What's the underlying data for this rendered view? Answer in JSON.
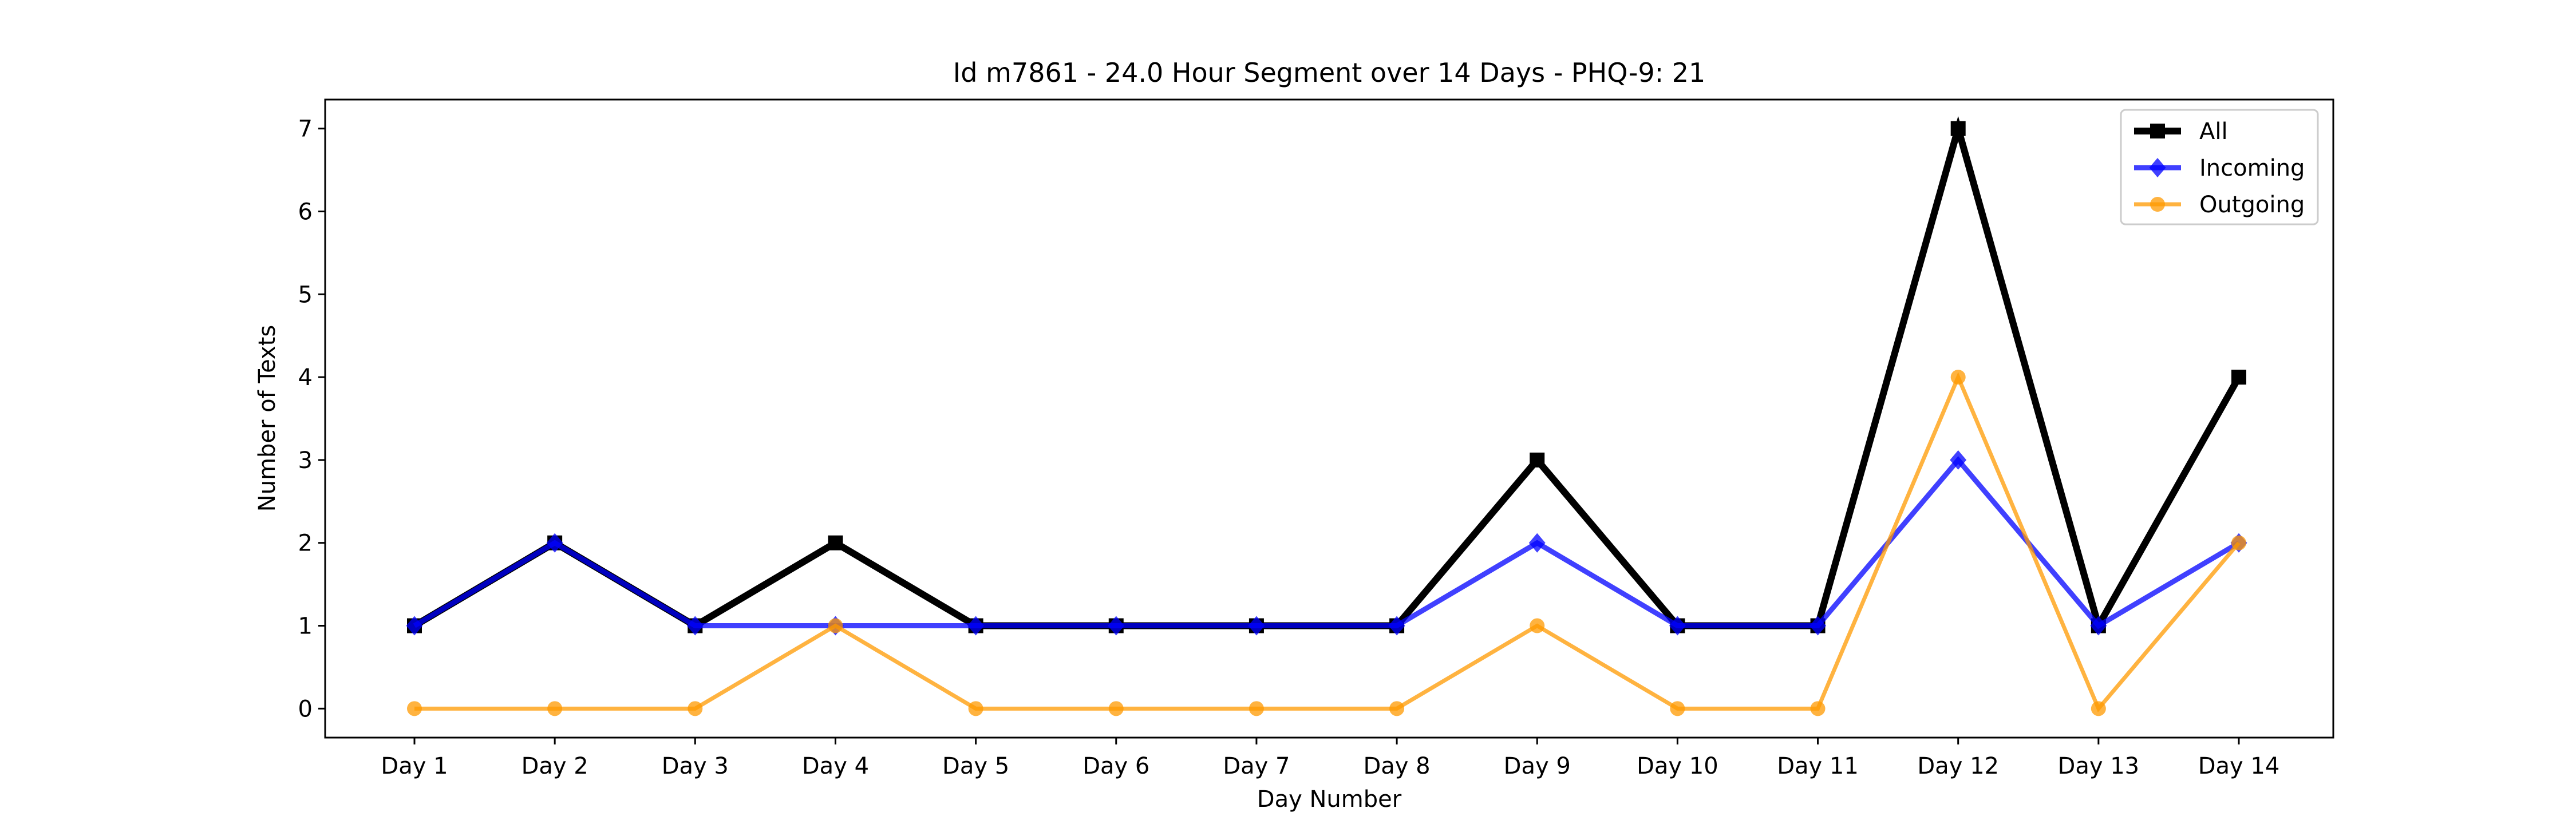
{
  "chart_data": {
    "type": "line",
    "title": "Id m7861 - 24.0 Hour Segment over 14 Days - PHQ-9: 21",
    "xlabel": "Day Number",
    "ylabel": "Number of Texts",
    "categories": [
      "Day 1",
      "Day 2",
      "Day 3",
      "Day 4",
      "Day 5",
      "Day 6",
      "Day 7",
      "Day 8",
      "Day 9",
      "Day 10",
      "Day 11",
      "Day 12",
      "Day 13",
      "Day 14"
    ],
    "yticks": [
      "0",
      "1",
      "2",
      "3",
      "4",
      "5",
      "6",
      "7"
    ],
    "ylim": [
      -0.35,
      7.35
    ],
    "grid": false,
    "legend_position": "top-right",
    "series": [
      {
        "name": "All",
        "marker": "square",
        "color": "#000000",
        "values": [
          1,
          2,
          1,
          2,
          1,
          1,
          1,
          1,
          3,
          1,
          1,
          7,
          1,
          4
        ]
      },
      {
        "name": "Incoming",
        "marker": "diamond",
        "color": "#0000ff",
        "values": [
          1,
          2,
          1,
          1,
          1,
          1,
          1,
          1,
          2,
          1,
          1,
          3,
          1,
          2
        ]
      },
      {
        "name": "Outgoing",
        "marker": "circle",
        "color": "#ff9900",
        "values": [
          0,
          0,
          0,
          1,
          0,
          0,
          0,
          0,
          1,
          0,
          0,
          4,
          0,
          2
        ]
      }
    ]
  }
}
